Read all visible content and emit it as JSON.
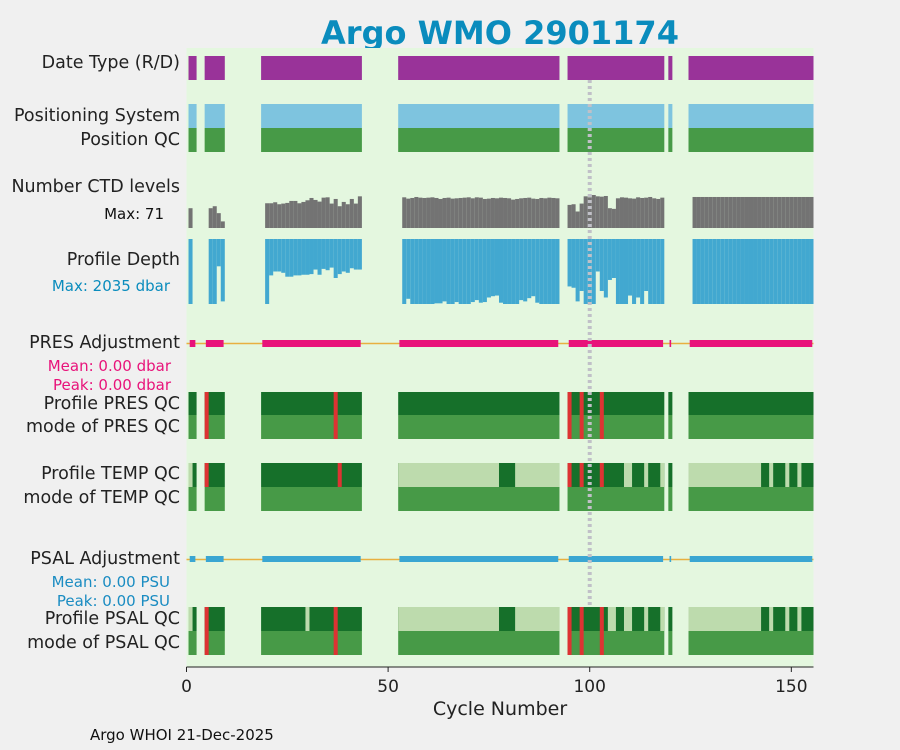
{
  "title": "Argo WMO 2901174",
  "footer": "Argo WHOI 21-Dec-2025",
  "labels": {
    "date_type": "Date Type (R/D)",
    "positioning_system": "Positioning System",
    "position_qc": "Position QC",
    "number_ctd_levels": "Number CTD levels",
    "ctd_max": "Max: 71",
    "profile_depth": "Profile Depth",
    "depth_max": "Max: 2035 dbar",
    "pres_adjustment": "PRES Adjustment",
    "pres_mean": "Mean: 0.00 dbar",
    "pres_peak": "Peak: 0.00 dbar",
    "profile_pres_qc": "Profile PRES QC",
    "mode_pres_qc": "mode of PRES QC",
    "profile_temp_qc": "Profile TEMP QC",
    "mode_temp_qc": "mode of TEMP QC",
    "psal_adjustment": "PSAL Adjustment",
    "psal_mean": "Mean: 0.00 PSU",
    "psal_peak": "Peak: 0.00 PSU",
    "profile_psal_qc": "Profile PSAL QC",
    "mode_psal_qc": "mode of PSAL QC"
  },
  "colors": {
    "title": "#0a8cbd",
    "background": "#e4f7df",
    "date_type": "#993399",
    "positioning": "#7ec4df",
    "qc_good": "#479a47",
    "qc_good_dark": "#16702a",
    "qc_light": "#bddbad",
    "qc_bad": "#dd3333",
    "ctd": "#737373",
    "depth": "#42a8d0",
    "pres": "#e8137a",
    "psal": "#3aa6d2",
    "zero_line": "#e8b040",
    "marker_line": "#c0c0c8",
    "depth_label": "#0a8cbd",
    "pres_label": "#e8137a",
    "psal_label": "#1a8cc2"
  },
  "chart_data": {
    "type": "status_timeline",
    "xlabel": "Cycle Number",
    "xlim": [
      0,
      155.5
    ],
    "xticks": [
      0,
      50,
      100,
      150
    ],
    "marker_cycle": 100,
    "ctd_max": 71,
    "depth_max_dbar": 2035,
    "cycle_segments": [
      [
        0.5,
        2.5
      ],
      [
        4.5,
        9.5
      ],
      [
        18.5,
        43.5
      ],
      [
        52.5,
        92.5
      ],
      [
        94.5,
        118.5
      ],
      [
        119.5,
        120.5
      ],
      [
        124.5,
        155.5
      ]
    ],
    "bad_pres_cycles": [
      5,
      37,
      95,
      98,
      103
    ],
    "temp_qc_light_ranges": [
      [
        0.5,
        1.5
      ],
      [
        52.5,
        77.5
      ],
      [
        81.5,
        92.5
      ],
      [
        108.5,
        110.5
      ],
      [
        113.5,
        114.5
      ],
      [
        117.5,
        118.5
      ],
      [
        124.5,
        142.5
      ],
      [
        144.5,
        145.5
      ],
      [
        148.5,
        149.5
      ],
      [
        151.5,
        152.5
      ]
    ],
    "temp_qc_bad_cycles": [
      5,
      38,
      95,
      98,
      103
    ],
    "psal_qc_light_ranges": [
      [
        0.5,
        1.5
      ],
      [
        29.5,
        30.5
      ],
      [
        52.5,
        77.5
      ],
      [
        81.5,
        92.5
      ],
      [
        104.5,
        106.5
      ],
      [
        108.5,
        110.5
      ],
      [
        113.5,
        114.5
      ],
      [
        117.5,
        118.5
      ],
      [
        124.5,
        142.5
      ],
      [
        144.5,
        145.5
      ],
      [
        148.5,
        149.5
      ],
      [
        151.5,
        152.5
      ]
    ],
    "psal_qc_bad_cycles": [
      5,
      37,
      95,
      98,
      103
    ],
    "ctd_levels": [
      60,
      0,
      0,
      0,
      0,
      60,
      66,
      45,
      20,
      15,
      0,
      0,
      0,
      0,
      0,
      0,
      0,
      0,
      0,
      75,
      75,
      78,
      72,
      74,
      76,
      82,
      82,
      75,
      79,
      84,
      91,
      85,
      80,
      92,
      93,
      74,
      88,
      66,
      79,
      72,
      88,
      74,
      96,
      75,
      0,
      0,
      0,
      0,
      0,
      0,
      0,
      0,
      0,
      93,
      89,
      91,
      94,
      92,
      91,
      92,
      93,
      91,
      88,
      91,
      92,
      89,
      90,
      91,
      92,
      93,
      90,
      93,
      92,
      88,
      89,
      91,
      90,
      92,
      91,
      90,
      86,
      88,
      90,
      91,
      92,
      89,
      88,
      91,
      90,
      92,
      91,
      90,
      93,
      0,
      70,
      72,
      50,
      74,
      96,
      93,
      100,
      96,
      95,
      97,
      60,
      58,
      90,
      93,
      92,
      90,
      89,
      93,
      91,
      92,
      94,
      90,
      88,
      92,
      95,
      0,
      89,
      0,
      0,
      0,
      0,
      94,
      94,
      94,
      94,
      94,
      94,
      94,
      94,
      94,
      94,
      94,
      94,
      94,
      94,
      94,
      94,
      94,
      94,
      94,
      94,
      94,
      94,
      94,
      94,
      94,
      94,
      94,
      94,
      94,
      94,
      94
    ],
    "profile_depth": [
      100,
      0,
      0,
      0,
      0,
      100,
      100,
      42,
      96,
      96,
      0,
      0,
      0,
      0,
      0,
      0,
      0,
      0,
      0,
      100,
      56,
      50,
      50,
      52,
      58,
      58,
      56,
      56,
      55,
      55,
      54,
      47,
      55,
      46,
      48,
      44,
      60,
      54,
      50,
      52,
      45,
      47,
      47,
      58,
      0,
      0,
      0,
      0,
      0,
      0,
      0,
      0,
      0,
      100,
      92,
      100,
      100,
      100,
      100,
      100,
      100,
      99,
      99,
      96,
      100,
      100,
      97,
      100,
      100,
      100,
      97,
      94,
      98,
      97,
      90,
      88,
      87,
      98,
      100,
      100,
      100,
      100,
      94,
      96,
      91,
      88,
      98,
      100,
      100,
      100,
      100,
      100,
      100,
      0,
      73,
      75,
      96,
      80,
      100,
      100,
      100,
      50,
      80,
      90,
      63,
      60,
      100,
      100,
      100,
      87,
      100,
      90,
      100,
      80,
      100,
      100,
      100,
      100,
      100,
      0,
      100,
      0,
      0,
      0,
      0,
      100,
      100,
      100,
      100,
      100,
      100,
      100,
      100,
      100,
      100,
      100,
      100,
      100,
      100,
      100,
      100,
      100,
      100,
      100,
      100,
      100,
      100,
      100,
      100,
      100,
      100,
      100,
      100,
      100,
      100,
      100
    ],
    "pres_adjustment_mean_dbar": 0.0,
    "pres_adjustment_peak_dbar": 0.0,
    "psal_adjustment_mean_psu": 0.0,
    "psal_adjustment_peak_psu": 0.0
  }
}
